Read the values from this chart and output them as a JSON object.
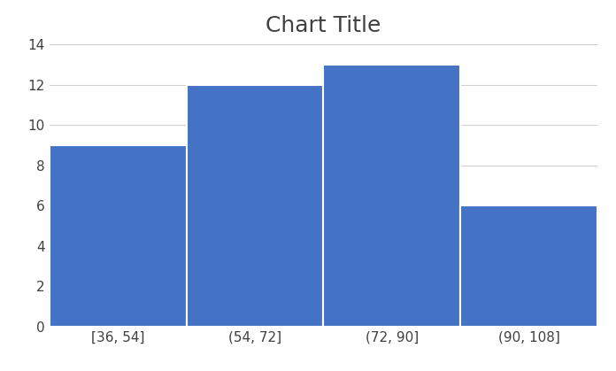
{
  "title": "Chart Title",
  "categories": [
    "[36, 54]",
    "(54, 72]",
    "(72, 90]",
    "(90, 108]"
  ],
  "values": [
    9,
    12,
    13,
    6
  ],
  "bar_color": "#4472C4",
  "bar_edge_color": "#FFFFFF",
  "ylim": [
    0,
    14
  ],
  "yticks": [
    0,
    2,
    4,
    6,
    8,
    10,
    12,
    14
  ],
  "title_fontsize": 18,
  "tick_fontsize": 11,
  "background_color": "#FFFFFF",
  "plot_bg_color": "#FFFFFF",
  "grid_color": "#D0D0D0",
  "title_color": "#404040"
}
